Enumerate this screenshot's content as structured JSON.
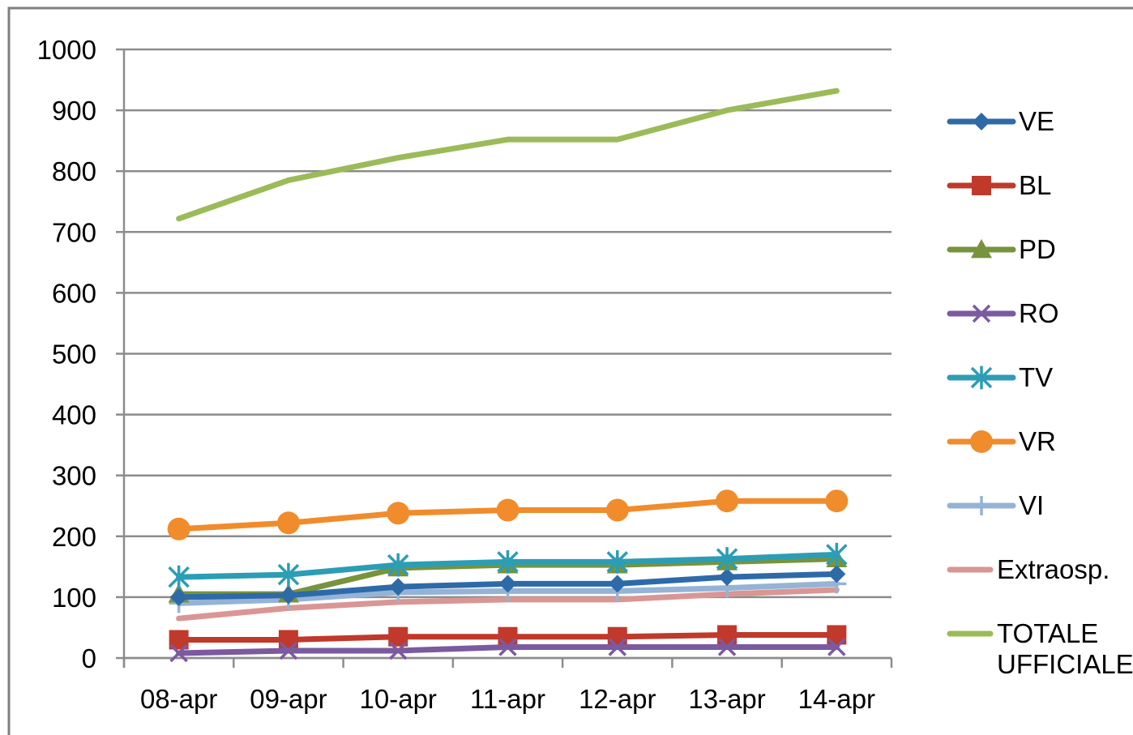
{
  "chart_data": {
    "type": "line",
    "categories": [
      "08-apr",
      "09-apr",
      "10-apr",
      "11-apr",
      "12-apr",
      "13-apr",
      "14-apr"
    ],
    "ylim": [
      0,
      1000
    ],
    "yticks": [
      "0",
      "100",
      "200",
      "300",
      "400",
      "500",
      "600",
      "700",
      "800",
      "900",
      "1000"
    ],
    "grid": true,
    "legend_position": "right",
    "series": [
      {
        "name": "TOTALE UFFICIALE",
        "legend_lines": [
          "TOTALE",
          "UFFICIALE"
        ],
        "color": "#9bbb59",
        "marker": "line",
        "values": [
          722,
          785,
          822,
          852,
          852,
          900,
          932
        ]
      },
      {
        "name": "Extraosp.",
        "legend_lines": [
          "Extraosp."
        ],
        "color": "#d99694",
        "marker": "line",
        "values": [
          65,
          82,
          92,
          96,
          96,
          105,
          112
        ]
      },
      {
        "name": "VI",
        "legend_lines": [
          "VI"
        ],
        "color": "#95b3d7",
        "marker": "plus",
        "values": [
          90,
          96,
          108,
          110,
          110,
          115,
          122
        ]
      },
      {
        "name": "PD",
        "legend_lines": [
          "PD"
        ],
        "color": "#77933c",
        "marker": "triangle",
        "values": [
          105,
          105,
          148,
          153,
          153,
          158,
          163
        ]
      },
      {
        "name": "VE",
        "legend_lines": [
          "VE"
        ],
        "color": "#2e6aa8",
        "marker": "diamond",
        "values": [
          100,
          103,
          117,
          122,
          122,
          133,
          138
        ]
      },
      {
        "name": "TV",
        "legend_lines": [
          "TV"
        ],
        "color": "#2c9db5",
        "marker": "asterisk",
        "values": [
          133,
          137,
          153,
          158,
          158,
          163,
          170
        ]
      },
      {
        "name": "BL",
        "legend_lines": [
          "BL"
        ],
        "color": "#c0392b",
        "marker": "square",
        "values": [
          30,
          30,
          35,
          35,
          35,
          38,
          38
        ]
      },
      {
        "name": "RO",
        "legend_lines": [
          "RO"
        ],
        "color": "#7b5aa0",
        "marker": "x",
        "values": [
          8,
          12,
          12,
          18,
          18,
          18,
          18
        ]
      },
      {
        "name": "VR",
        "legend_lines": [
          "VR"
        ],
        "color": "#f08c2c",
        "marker": "circle",
        "values": [
          212,
          222,
          238,
          243,
          243,
          258,
          258
        ]
      }
    ],
    "legend_order": [
      "VE",
      "BL",
      "PD",
      "RO",
      "TV",
      "VR",
      "VI",
      "Extraosp.",
      "TOTALE UFFICIALE"
    ]
  }
}
